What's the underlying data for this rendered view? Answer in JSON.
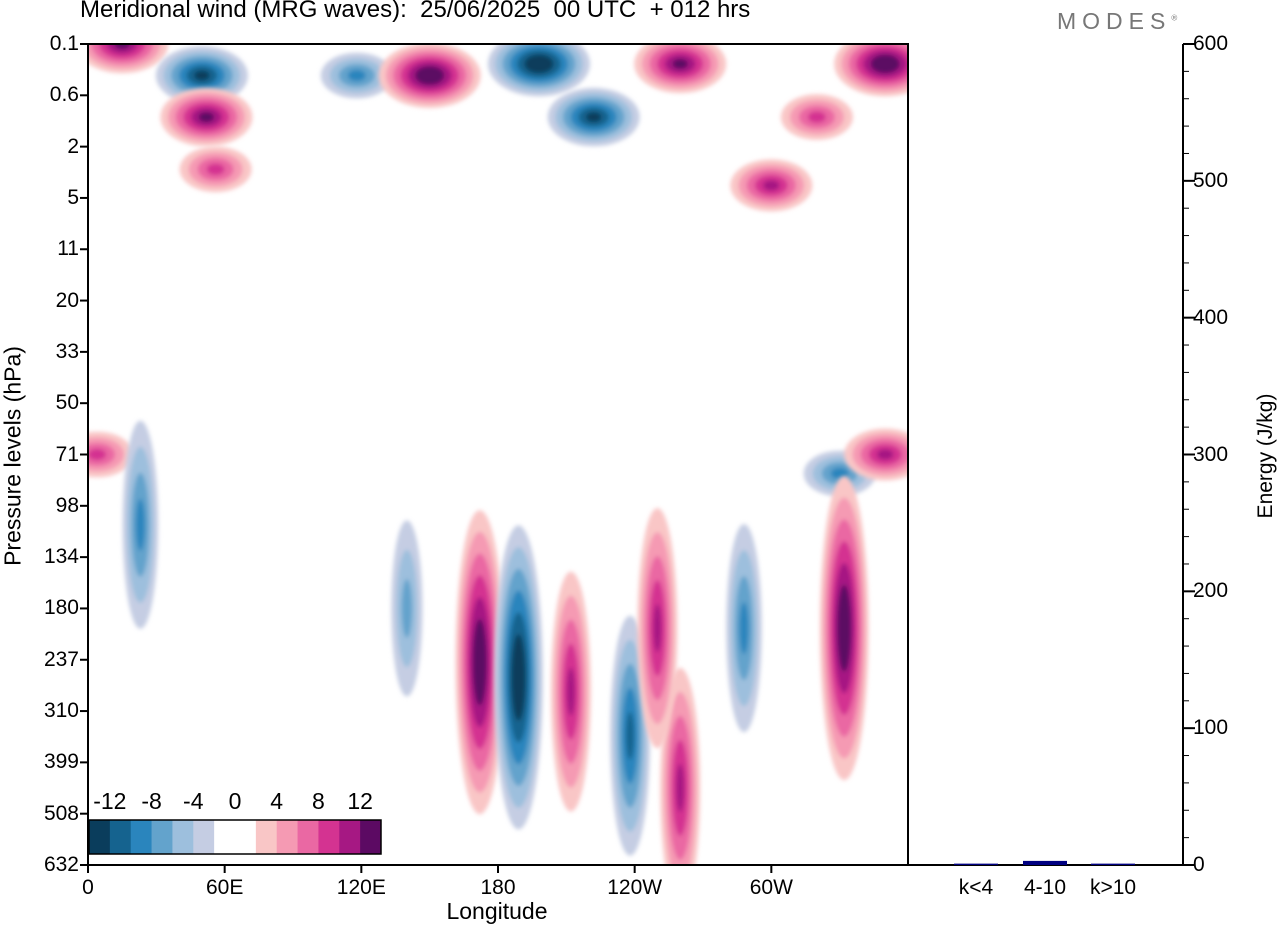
{
  "header": {
    "title": "Meridional wind (MRG waves):  25/06/2025  00 UTC  + 012 hrs",
    "logo": "MODES"
  },
  "chart_data": [
    {
      "type": "heatmap",
      "title": "Meridional wind (MRG waves):  25/06/2025  00 UTC  + 012 hrs",
      "xlabel": "Longitude",
      "ylabel": "Pressure levels (hPa)",
      "x_ticks": [
        "0",
        "60E",
        "120E",
        "180",
        "120W",
        "60W"
      ],
      "y_ticks": [
        "0.1",
        "0.6",
        "2",
        "5",
        "11",
        "20",
        "33",
        "50",
        "71",
        "98",
        "134",
        "180",
        "237",
        "310",
        "399",
        "508",
        "632"
      ],
      "xlim_deg_east": [
        0,
        360
      ],
      "colorbar": {
        "levels": [
          "-12",
          "-8",
          "-4",
          "0",
          "4",
          "8",
          "12"
        ],
        "bins": [
          -14,
          -12,
          -10,
          -8,
          -6,
          -4,
          -2,
          0,
          2,
          4,
          6,
          8,
          10,
          12,
          14
        ],
        "colors": [
          "#0a3d5c",
          "#15638f",
          "#2a85bd",
          "#63a3cc",
          "#9dbfdd",
          "#c5cde3",
          "#ffffff",
          "#ffffff",
          "#f9c6c6",
          "#f59ab3",
          "#ea68a3",
          "#d43391",
          "#a61883",
          "#5c0a63"
        ],
        "placement": "bottom-left"
      },
      "features": [
        {
          "lon": 15,
          "lev": "0.1",
          "v": 12
        },
        {
          "lon": 50,
          "lev": "0.3",
          "v": -12
        },
        {
          "lon": 52,
          "lev": "1",
          "v": 12
        },
        {
          "lon": 56,
          "lev": "3",
          "v": 8
        },
        {
          "lon": 118,
          "lev": "0.3",
          "v": -8
        },
        {
          "lon": 150,
          "lev": "0.3",
          "v": 14
        },
        {
          "lon": 198,
          "lev": "0.2",
          "v": -14
        },
        {
          "lon": 222,
          "lev": "1",
          "v": -12
        },
        {
          "lon": 260,
          "lev": "0.2",
          "v": 12
        },
        {
          "lon": 350,
          "lev": "0.2",
          "v": 14
        },
        {
          "lon": 320,
          "lev": "1",
          "v": 8
        },
        {
          "lon": 300,
          "lev": "4",
          "v": 10
        },
        {
          "lon": 4,
          "lev": "71",
          "v": 8
        },
        {
          "lon": 350,
          "lev": "71",
          "v": 10
        },
        {
          "lon": 330,
          "lev": "80",
          "v": -8
        },
        {
          "lon": 23,
          "lev": "110",
          "v": -8
        },
        {
          "lon": 172,
          "lev": "240",
          "v": 14
        },
        {
          "lon": 189,
          "lev": "260",
          "v": -14
        },
        {
          "lon": 212,
          "lev": "280",
          "v": 10
        },
        {
          "lon": 238,
          "lev": "350",
          "v": -10
        },
        {
          "lon": 260,
          "lev": "450",
          "v": 10
        },
        {
          "lon": 250,
          "lev": "200",
          "v": 10
        },
        {
          "lon": 288,
          "lev": "200",
          "v": -8
        },
        {
          "lon": 332,
          "lev": "200",
          "v": 14
        },
        {
          "lon": 140,
          "lev": "180",
          "v": -6
        }
      ]
    },
    {
      "type": "bar",
      "categories": [
        "k<4",
        "4-10",
        "k>10"
      ],
      "values": [
        1,
        3,
        1
      ],
      "ylabel": "Energy (J/kg)",
      "ylim": [
        0,
        600
      ],
      "y_ticks": [
        "0",
        "100",
        "200",
        "300",
        "400",
        "500",
        "600"
      ],
      "bar_color": "#000080"
    }
  ]
}
